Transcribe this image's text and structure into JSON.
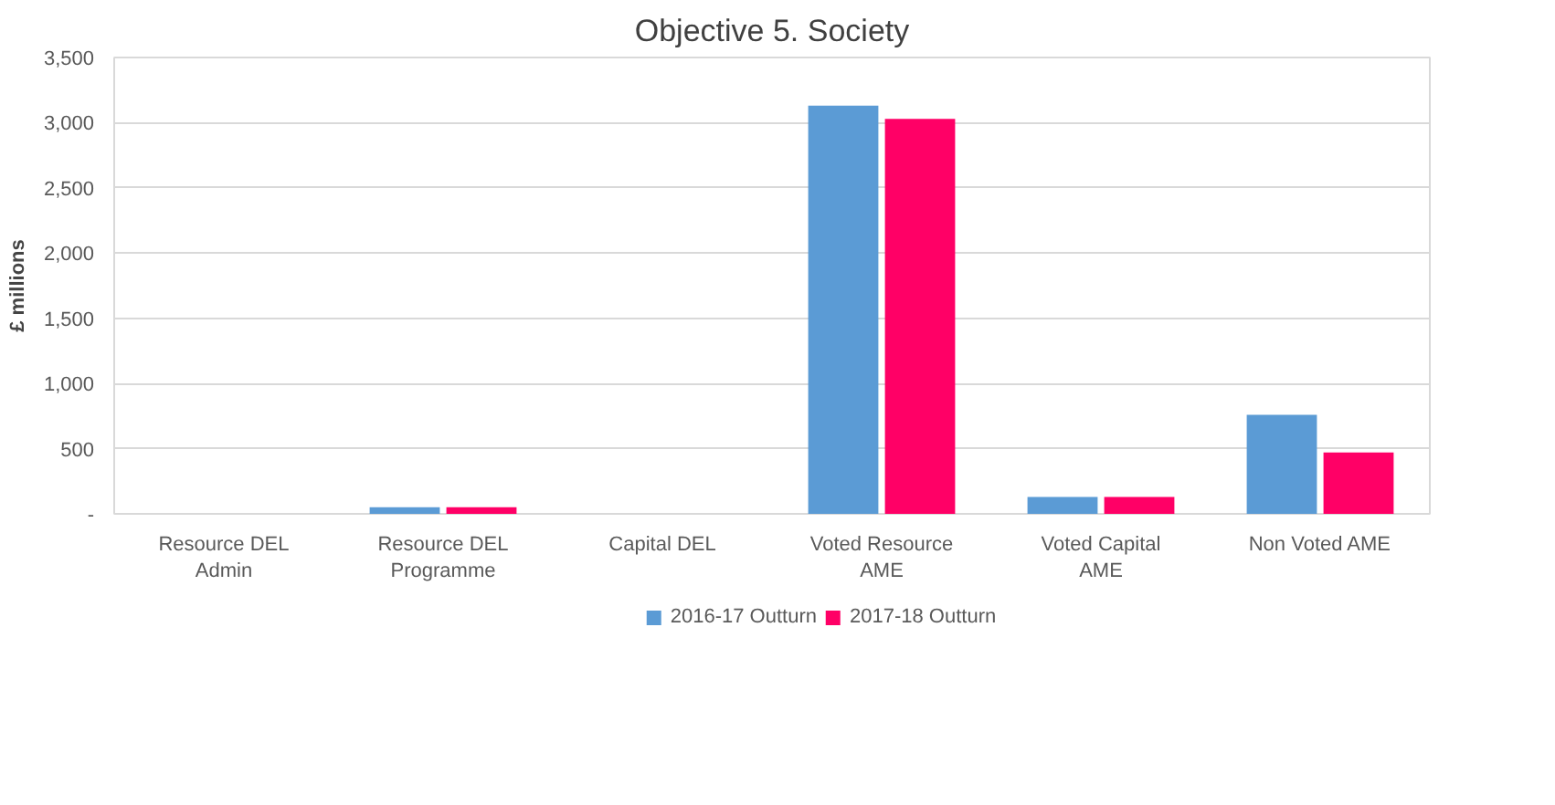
{
  "chart_data": {
    "type": "bar",
    "title": "Objective 5. Society",
    "ylabel": "£ millions",
    "categories": [
      "Resource DEL Admin",
      "Resource DEL Programme",
      "Capital DEL",
      "Voted Resource AME",
      "Voted Capital AME",
      "Non Voted AME"
    ],
    "series": [
      {
        "name": "2016-17 Outturn",
        "color": "#5b9bd5",
        "values": [
          0,
          50,
          0,
          3130,
          130,
          760
        ]
      },
      {
        "name": "2017-18 Outturn",
        "color": "#ff0066",
        "values": [
          0,
          50,
          0,
          3030,
          130,
          470
        ]
      }
    ],
    "ylim": [
      0,
      3500
    ],
    "yticks": [
      {
        "value": 0,
        "label": "-"
      },
      500,
      {
        "value": 1000,
        "label": "1,000"
      },
      {
        "value": 1500,
        "label": "1,500"
      },
      {
        "value": 2000,
        "label": "2,000"
      },
      {
        "value": 2500,
        "label": "2,500"
      },
      {
        "value": 3000,
        "label": "3,000"
      },
      {
        "value": 3500,
        "label": "3,500"
      }
    ],
    "grid": "y",
    "legend": "bottom"
  }
}
